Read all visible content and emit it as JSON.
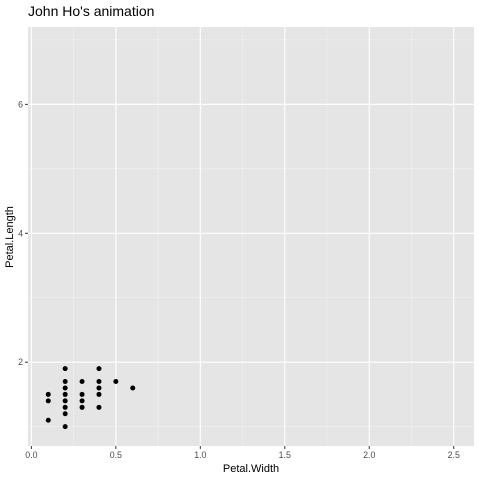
{
  "chart_data": {
    "type": "scatter",
    "title": "John Ho's animation",
    "xlabel": "Petal.Width",
    "ylabel": "Petal.Length",
    "xlim": [
      -0.02,
      2.62
    ],
    "ylim": [
      0.7,
      7.2
    ],
    "x_ticks": [
      0.0,
      0.5,
      1.0,
      1.5,
      2.0,
      2.5
    ],
    "x_tick_labels": [
      "0.0",
      "0.5",
      "1.0",
      "1.5",
      "2.0",
      "2.5"
    ],
    "y_ticks": [
      2,
      4,
      6
    ],
    "y_tick_labels": [
      "2",
      "4",
      "6"
    ],
    "grid": true,
    "legend": "none",
    "colors": {
      "panel": "#e5e5e5",
      "grid_major": "#ffffff",
      "point": "#000000",
      "tick": "#333333"
    },
    "points": [
      {
        "x": 0.1,
        "y": 1.5
      },
      {
        "x": 0.1,
        "y": 1.4
      },
      {
        "x": 0.1,
        "y": 1.1
      },
      {
        "x": 0.2,
        "y": 1.9
      },
      {
        "x": 0.2,
        "y": 1.7
      },
      {
        "x": 0.2,
        "y": 1.6
      },
      {
        "x": 0.2,
        "y": 1.5
      },
      {
        "x": 0.2,
        "y": 1.4
      },
      {
        "x": 0.2,
        "y": 1.3
      },
      {
        "x": 0.2,
        "y": 1.2
      },
      {
        "x": 0.2,
        "y": 1.0
      },
      {
        "x": 0.3,
        "y": 1.7
      },
      {
        "x": 0.3,
        "y": 1.5
      },
      {
        "x": 0.3,
        "y": 1.4
      },
      {
        "x": 0.3,
        "y": 1.3
      },
      {
        "x": 0.4,
        "y": 1.9
      },
      {
        "x": 0.4,
        "y": 1.7
      },
      {
        "x": 0.4,
        "y": 1.6
      },
      {
        "x": 0.4,
        "y": 1.5
      },
      {
        "x": 0.4,
        "y": 1.3
      },
      {
        "x": 0.5,
        "y": 1.7
      },
      {
        "x": 0.6,
        "y": 1.6
      }
    ]
  }
}
